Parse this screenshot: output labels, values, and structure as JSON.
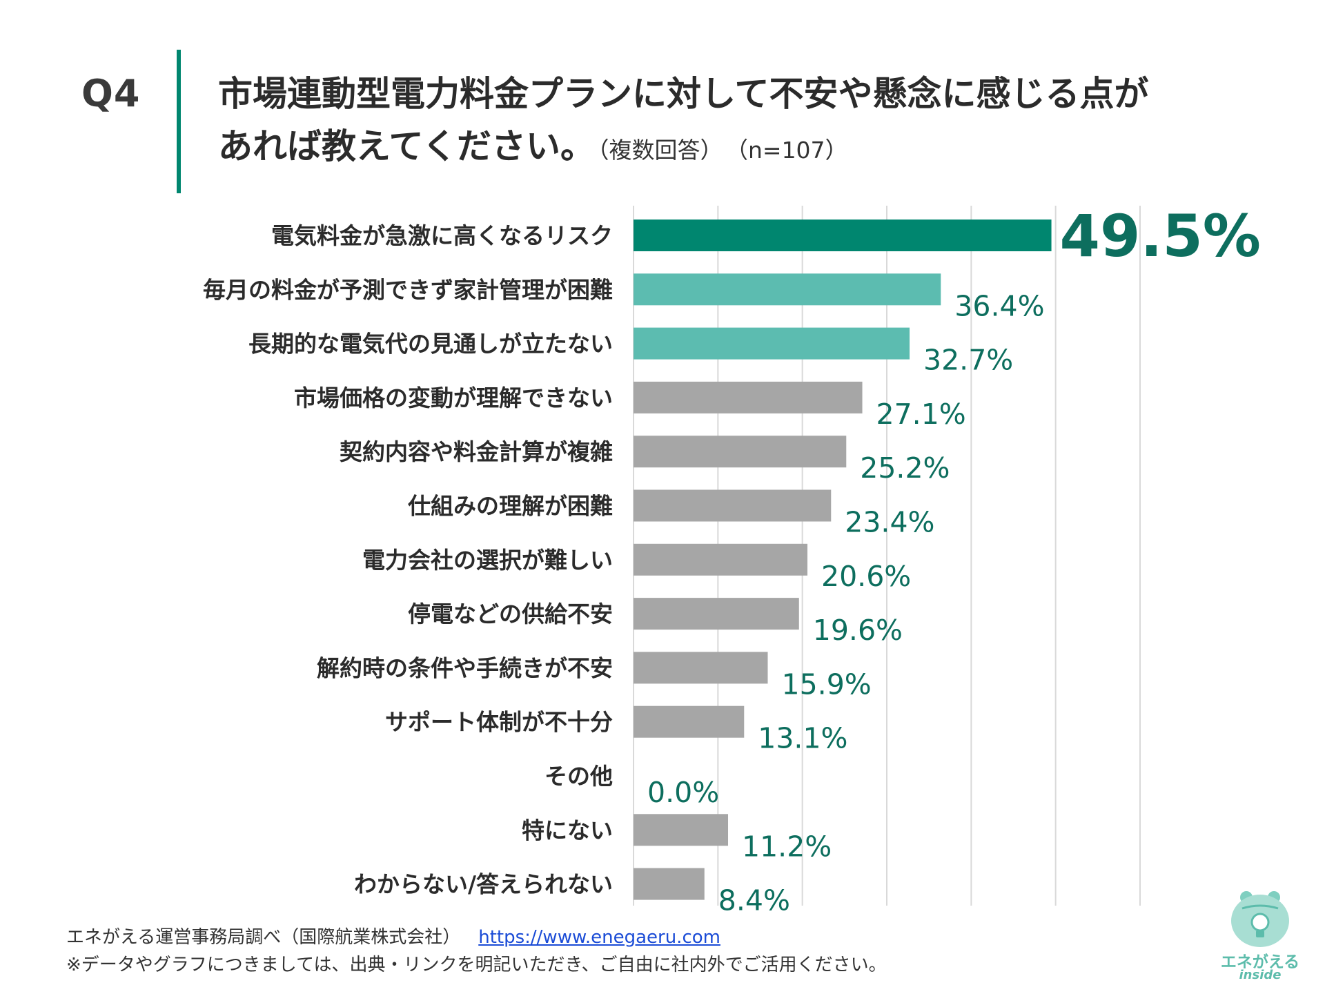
{
  "header": {
    "q_number": "Q4",
    "title_line1": "市場連動型電力料金プランに対して不安や懸念に感じる点が",
    "title_line2": "あれば教えてください。",
    "note": "（複数回答）",
    "sample": "（n=107）"
  },
  "chart_data": {
    "type": "bar",
    "orientation": "horizontal",
    "title": "市場連動型電力料金プランに対して不安や懸念に感じる点があれば教えてください。",
    "unit": "%",
    "xlim": [
      0,
      60
    ],
    "grid": true,
    "categories": [
      "電気料金が急激に高くなるリスク",
      "毎月の料金が予測できず家計管理が困難",
      "長期的な電気代の見通しが立たない",
      "市場価格の変動が理解できない",
      "契約内容や料金計算が複雑",
      "仕組みの理解が困難",
      "電力会社の選択が難しい",
      "停電などの供給不安",
      "解約時の条件や手続きが不安",
      "サポート体制が不十分",
      "その他",
      "特にない",
      "わからない/答えられない"
    ],
    "values": [
      49.5,
      36.4,
      32.7,
      27.1,
      25.2,
      23.4,
      20.6,
      19.6,
      15.9,
      13.1,
      0.0,
      11.2,
      8.4
    ],
    "value_labels": [
      "49.5%",
      "36.4%",
      "32.7%",
      "27.1%",
      "25.2%",
      "23.4%",
      "20.6%",
      "19.6%",
      "15.9%",
      "13.1%",
      "0.0%",
      "11.2%",
      "8.4%"
    ],
    "colors": [
      "#00866f",
      "#5cbcb0",
      "#5cbcb0",
      "#a6a6a6",
      "#a6a6a6",
      "#a6a6a6",
      "#a6a6a6",
      "#a6a6a6",
      "#a6a6a6",
      "#a6a6a6",
      "#a6a6a6",
      "#a6a6a6",
      "#a6a6a6"
    ],
    "label_color": "#0d6e5e",
    "grid_color": "#d9d9d9"
  },
  "footer": {
    "source": "エネがえる運営事務局調べ（国際航業株式会社）",
    "link": "https://www.enegaeru.com",
    "notice": "※データやグラフにつきましては、出典・リンクを明記いただき、ご自由に社内外でご活用ください。"
  },
  "logo": {
    "text": "エネがえる",
    "sub": "inside",
    "icon": "frog-lightbulb-icon"
  }
}
